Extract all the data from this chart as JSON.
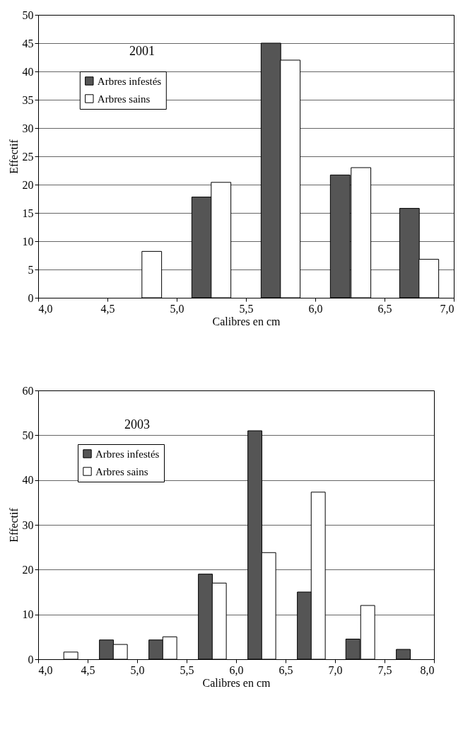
{
  "chart_data": [
    {
      "type": "bar",
      "title": "2001",
      "xlabel": "Calibres en cm",
      "ylabel": "Effectif",
      "xlim": [
        4,
        7
      ],
      "xticks": [
        {
          "value": 4,
          "label": "4,0"
        },
        {
          "value": 4.5,
          "label": "4,5"
        },
        {
          "value": 5,
          "label": "5,0"
        },
        {
          "value": 5.5,
          "label": "5,5"
        },
        {
          "value": 6,
          "label": "6,0"
        },
        {
          "value": 6.5,
          "label": "6,5"
        },
        {
          "value": 7,
          "label": "7,0"
        }
      ],
      "ylim": [
        0,
        50
      ],
      "yticks": [
        0,
        5,
        10,
        15,
        20,
        25,
        30,
        35,
        40,
        45,
        50
      ],
      "grid": "y",
      "legend": "top left",
      "series": [
        {
          "name": "Arbres infestés",
          "color": "#555555",
          "x": [
            5.18,
            5.68,
            6.18,
            6.68
          ],
          "values": [
            17.8,
            45,
            21.7,
            15.8
          ]
        },
        {
          "name": "Arbres sains",
          "color": "#ffffff",
          "x": [
            4.82,
            5.32,
            5.82,
            6.33,
            6.82
          ],
          "values": [
            8.2,
            20.4,
            42,
            23,
            6.8
          ]
        }
      ]
    },
    {
      "type": "bar",
      "title": "2003",
      "xlabel": "Calibres en cm",
      "ylabel": "Effectif",
      "xlim": [
        4,
        8
      ],
      "xticks": [
        {
          "value": 4,
          "label": "4,0"
        },
        {
          "value": 4.5,
          "label": "4,5"
        },
        {
          "value": 5,
          "label": "5,0"
        },
        {
          "value": 5.5,
          "label": "5,5"
        },
        {
          "value": 6,
          "label": "6,0"
        },
        {
          "value": 6.5,
          "label": "6,5"
        },
        {
          "value": 7,
          "label": "7,0"
        },
        {
          "value": 7.5,
          "label": "7,5"
        },
        {
          "value": 8,
          "label": "8,0"
        }
      ],
      "ylim": [
        0,
        60
      ],
      "yticks": [
        0,
        10,
        20,
        30,
        40,
        50,
        60
      ],
      "grid": "y",
      "legend": "top left",
      "series": [
        {
          "name": "Arbres infestés",
          "color": "#555555",
          "x": [
            4.69,
            5.19,
            5.69,
            6.19,
            6.69,
            7.18,
            7.69
          ],
          "values": [
            4.3,
            4.3,
            19,
            51,
            15,
            4.5,
            2.2
          ]
        },
        {
          "name": "Arbres sains",
          "color": "#ffffff",
          "x": [
            4.33,
            4.83,
            5.33,
            5.83,
            6.33,
            6.83,
            7.33
          ],
          "values": [
            1.6,
            3.3,
            5,
            17,
            23.8,
            37.3,
            12
          ]
        }
      ]
    }
  ]
}
